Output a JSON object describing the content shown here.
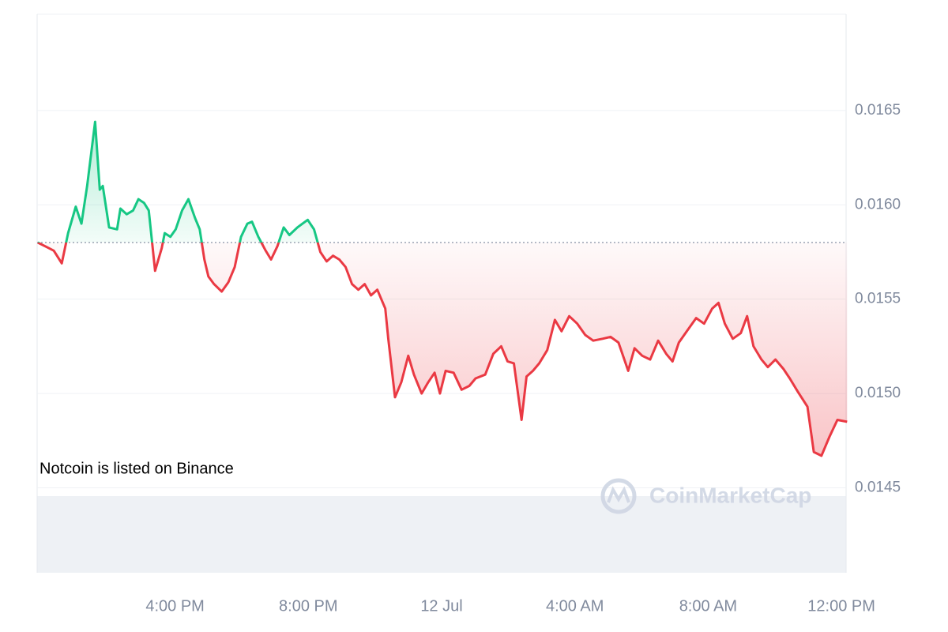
{
  "chart_data": {
    "type": "line",
    "annotation": "Notcoin is listed on Binance",
    "watermark": "CoinMarketCap",
    "baseline": 0.0158,
    "up_color": "#16c784",
    "down_color": "#ea3943",
    "grid": true,
    "xlim": [
      11.86,
      36.14
    ],
    "xticks": [
      {
        "value": 16,
        "label": "4:00 PM"
      },
      {
        "value": 20,
        "label": "8:00 PM"
      },
      {
        "value": 24,
        "label": "12 Jul"
      },
      {
        "value": 28,
        "label": "4:00 AM"
      },
      {
        "value": 32,
        "label": "8:00 AM"
      },
      {
        "value": 36,
        "label": "12:00 PM"
      }
    ],
    "ylim": [
      0.01405,
      0.01701
    ],
    "yticks": [
      0.0145,
      {
        "value": 0.015,
        "label": "0.0150"
      },
      0.0155,
      {
        "value": 0.016,
        "label": "0.0160"
      },
      0.0165
    ],
    "x": [
      11.88,
      12.17,
      12.36,
      12.6,
      12.79,
      13.02,
      13.19,
      13.36,
      13.6,
      13.74,
      13.83,
      14.02,
      14.26,
      14.36,
      14.55,
      14.74,
      14.9,
      15.07,
      15.21,
      15.4,
      15.6,
      15.69,
      15.86,
      16.02,
      16.21,
      16.4,
      16.6,
      16.74,
      16.88,
      17.0,
      17.17,
      17.4,
      17.6,
      17.79,
      17.98,
      18.17,
      18.31,
      18.5,
      18.71,
      18.88,
      19.07,
      19.26,
      19.43,
      19.67,
      19.98,
      20.17,
      20.36,
      20.55,
      20.74,
      20.93,
      21.12,
      21.31,
      21.5,
      21.69,
      21.88,
      22.07,
      22.31,
      22.4,
      22.6,
      22.79,
      23.0,
      23.17,
      23.4,
      23.6,
      23.79,
      23.95,
      24.12,
      24.36,
      24.6,
      24.83,
      25.02,
      25.31,
      25.55,
      25.79,
      25.98,
      26.17,
      26.4,
      26.55,
      26.74,
      26.93,
      27.17,
      27.4,
      27.6,
      27.83,
      28.07,
      28.31,
      28.55,
      28.83,
      29.07,
      29.31,
      29.6,
      29.79,
      30.02,
      30.26,
      30.5,
      30.74,
      30.93,
      31.12,
      31.36,
      31.64,
      31.88,
      32.12,
      32.31,
      32.5,
      32.74,
      32.98,
      33.17,
      33.36,
      33.6,
      33.79,
      34.02,
      34.26,
      34.45,
      34.69,
      34.98,
      35.17,
      35.4,
      35.64,
      35.88,
      36.17
    ],
    "values": [
      0.0158,
      0.015774,
      0.015757,
      0.01569,
      0.01585,
      0.01599,
      0.0159,
      0.0161,
      0.01644,
      0.01608,
      0.0161,
      0.01588,
      0.01587,
      0.01598,
      0.01595,
      0.01597,
      0.01603,
      0.01601,
      0.01597,
      0.01565,
      0.01577,
      0.01585,
      0.01583,
      0.01587,
      0.01597,
      0.01603,
      0.01593,
      0.01587,
      0.01571,
      0.01562,
      0.01558,
      0.01554,
      0.01559,
      0.01567,
      0.01583,
      0.0159,
      0.01591,
      0.01583,
      0.01576,
      0.01571,
      0.01578,
      0.01588,
      0.01584,
      0.01588,
      0.01592,
      0.01587,
      0.01575,
      0.0157,
      0.01573,
      0.01571,
      0.01567,
      0.01558,
      0.01555,
      0.01558,
      0.01552,
      0.01555,
      0.01545,
      0.01529,
      0.01498,
      0.01506,
      0.0152,
      0.0151,
      0.015,
      0.01506,
      0.01511,
      0.015,
      0.01512,
      0.01511,
      0.01502,
      0.01504,
      0.01508,
      0.0151,
      0.01521,
      0.01525,
      0.01517,
      0.01516,
      0.01486,
      0.01509,
      0.01512,
      0.01516,
      0.01523,
      0.01539,
      0.01533,
      0.01541,
      0.01537,
      0.01531,
      0.01528,
      0.01529,
      0.0153,
      0.01527,
      0.01512,
      0.01524,
      0.0152,
      0.01518,
      0.01528,
      0.01521,
      0.01517,
      0.01527,
      0.01533,
      0.0154,
      0.01537,
      0.01545,
      0.01548,
      0.01537,
      0.01529,
      0.01532,
      0.01541,
      0.01525,
      0.01518,
      0.01514,
      0.01518,
      0.01513,
      0.01508,
      0.01501,
      0.01493,
      0.01469,
      0.01467,
      0.01477,
      0.01486,
      0.01485
    ]
  }
}
